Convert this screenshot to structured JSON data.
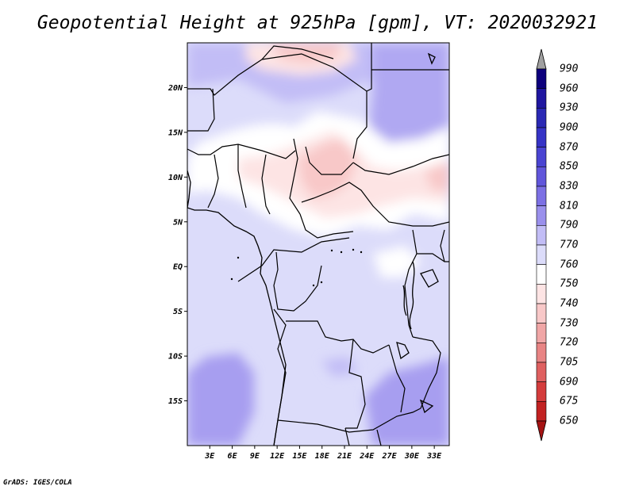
{
  "title": "Geopotential Height at 925hPa [gpm], VT: 2020032921",
  "credit": "GrADS: IGES/COLA",
  "map": {
    "lat_labels": [
      "20N",
      "15N",
      "10N",
      "5N",
      "EQ",
      "5S",
      "10S",
      "15S"
    ],
    "lon_labels": [
      "3E",
      "6E",
      "9E",
      "12E",
      "15E",
      "18E",
      "21E",
      "24E",
      "27E",
      "30E",
      "33E"
    ],
    "lat_range": [
      -20,
      25
    ],
    "lon_range": [
      0,
      35
    ]
  },
  "colorbar": {
    "levels": [
      "990",
      "960",
      "930",
      "900",
      "870",
      "850",
      "830",
      "810",
      "790",
      "770",
      "760",
      "750",
      "740",
      "730",
      "720",
      "705",
      "690",
      "675",
      "650"
    ],
    "colors": [
      "#0d007d",
      "#1f16a0",
      "#2a28b4",
      "#3633c6",
      "#4a44d2",
      "#6156db",
      "#7c70e4",
      "#9a90ec",
      "#c2bdf6",
      "#dcdcfa",
      "#ffffff",
      "#fde4e4",
      "#f8c8c8",
      "#f0a6a6",
      "#e88484",
      "#df6060",
      "#d43c3c",
      "#c22222",
      "#a51313"
    ],
    "top_arrow_color": "#a0a0a0"
  }
}
